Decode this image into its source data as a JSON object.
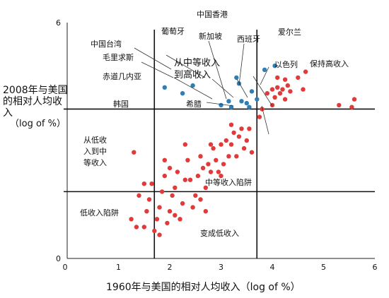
{
  "chart_data": {
    "type": "scatter",
    "title": "",
    "xlabel": "1960年与美国的相对人均收入（log of %）",
    "ylabel": "2008年与美国的相对人均收入",
    "ylabel_unit": "（log of %）",
    "xlim": [
      0,
      6
    ],
    "ylim": [
      0,
      6
    ],
    "xticks": [
      "0",
      "1",
      "2",
      "3",
      "4",
      "5",
      "6"
    ],
    "yticks": [
      "0",
      "6"
    ],
    "thresholds": {
      "x": [
        1.7,
        3.7
      ],
      "y": [
        1.7,
        3.8
      ]
    },
    "series": [
      {
        "color": "#e03a3a",
        "points": [
          [
            1.25,
            1.0
          ],
          [
            1.35,
            0.8
          ],
          [
            1.4,
            1.6
          ],
          [
            1.5,
            0.8
          ],
          [
            1.55,
            1.2
          ],
          [
            1.6,
            1.5
          ],
          [
            1.65,
            1.9
          ],
          [
            1.7,
            0.7
          ],
          [
            1.75,
            1.0
          ],
          [
            1.8,
            1.3
          ],
          [
            1.85,
            1.7
          ],
          [
            1.9,
            2.1
          ],
          [
            1.95,
            0.9
          ],
          [
            2.0,
            1.2
          ],
          [
            2.05,
            1.6
          ],
          [
            2.1,
            1.8
          ],
          [
            2.15,
            2.2
          ],
          [
            2.2,
            1.0
          ],
          [
            2.25,
            1.4
          ],
          [
            2.3,
            2.0
          ],
          [
            2.35,
            2.5
          ],
          [
            2.4,
            2.0
          ],
          [
            2.45,
            1.3
          ],
          [
            2.5,
            1.6
          ],
          [
            2.55,
            2.1
          ],
          [
            2.6,
            2.6
          ],
          [
            2.65,
            2.3
          ],
          [
            2.7,
            1.8
          ],
          [
            2.75,
            2.4
          ],
          [
            2.8,
            2.2
          ],
          [
            2.85,
            2.8
          ],
          [
            2.9,
            2.5
          ],
          [
            2.95,
            2.2
          ],
          [
            3.0,
            2.9
          ],
          [
            3.05,
            2.4
          ],
          [
            3.1,
            3.0
          ],
          [
            3.15,
            2.6
          ],
          [
            3.2,
            2.9
          ],
          [
            3.25,
            3.2
          ],
          [
            3.3,
            2.6
          ],
          [
            3.35,
            3.1
          ],
          [
            3.4,
            3.3
          ],
          [
            3.45,
            2.8
          ],
          [
            3.5,
            3.0
          ],
          [
            3.55,
            3.3
          ],
          [
            3.6,
            2.7
          ],
          [
            2.0,
            2.3
          ],
          [
            2.3,
            2.9
          ],
          [
            1.9,
            2.5
          ],
          [
            2.6,
            1.5
          ],
          [
            1.3,
            2.7
          ],
          [
            1.5,
            1.9
          ],
          [
            2.1,
            1.1
          ],
          [
            3.0,
            2.1
          ],
          [
            2.8,
            2.9
          ],
          [
            3.2,
            3.4
          ],
          [
            1.8,
            0.6
          ],
          [
            2.7,
            1.2
          ],
          [
            3.8,
            3.8
          ],
          [
            3.9,
            4.2
          ],
          [
            4.0,
            4.3
          ],
          [
            4.05,
            4.1
          ],
          [
            4.1,
            4.35
          ],
          [
            4.15,
            4.2
          ],
          [
            4.2,
            4.3
          ],
          [
            4.25,
            4.05
          ],
          [
            4.3,
            4.4
          ],
          [
            4.35,
            4.25
          ],
          [
            4.1,
            4.6
          ],
          [
            4.25,
            4.55
          ],
          [
            4.6,
            4.3
          ],
          [
            4.65,
            4.75
          ],
          [
            4.5,
            4.6
          ],
          [
            5.3,
            3.9
          ],
          [
            5.55,
            3.85
          ],
          [
            5.6,
            4.05
          ],
          [
            3.75,
            3.6
          ],
          [
            4.0,
            3.9
          ]
        ]
      },
      {
        "color": "#2f7fb5",
        "points": [
          [
            1.9,
            4.35
          ],
          [
            2.25,
            4.2
          ],
          [
            2.45,
            4.4
          ],
          [
            3.0,
            3.9
          ],
          [
            3.15,
            4.0
          ],
          [
            3.2,
            3.85
          ],
          [
            3.35,
            4.45
          ],
          [
            3.4,
            4.0
          ],
          [
            3.5,
            3.95
          ],
          [
            3.55,
            3.85
          ],
          [
            3.6,
            4.25
          ],
          [
            3.7,
            4.05
          ],
          [
            3.85,
            4.8
          ],
          [
            4.05,
            4.9
          ],
          [
            3.3,
            4.6
          ]
        ]
      }
    ],
    "annotations": {
      "hongkong": "中国香港",
      "portugal": "葡萄牙",
      "singapore": "新加坡",
      "spain": "西班牙",
      "ireland": "爱尔兰",
      "taiwan": "中国台湾",
      "mauritius": "毛里求斯",
      "mid_to_high_1": "从中等收入",
      "mid_to_high_2": "到高收入",
      "israel": "以色列",
      "keep_high": "保持高收入",
      "eq_guinea": "赤道几内亚",
      "korea": "韩国",
      "greece": "希腊",
      "low_to_mid_1": "从低收",
      "low_to_mid_2": "入到中",
      "low_to_mid_3": "等收入",
      "middle_trap": "中等收入陷阱",
      "low_trap": "低收入陷阱",
      "become_low": "变成低收入"
    }
  }
}
